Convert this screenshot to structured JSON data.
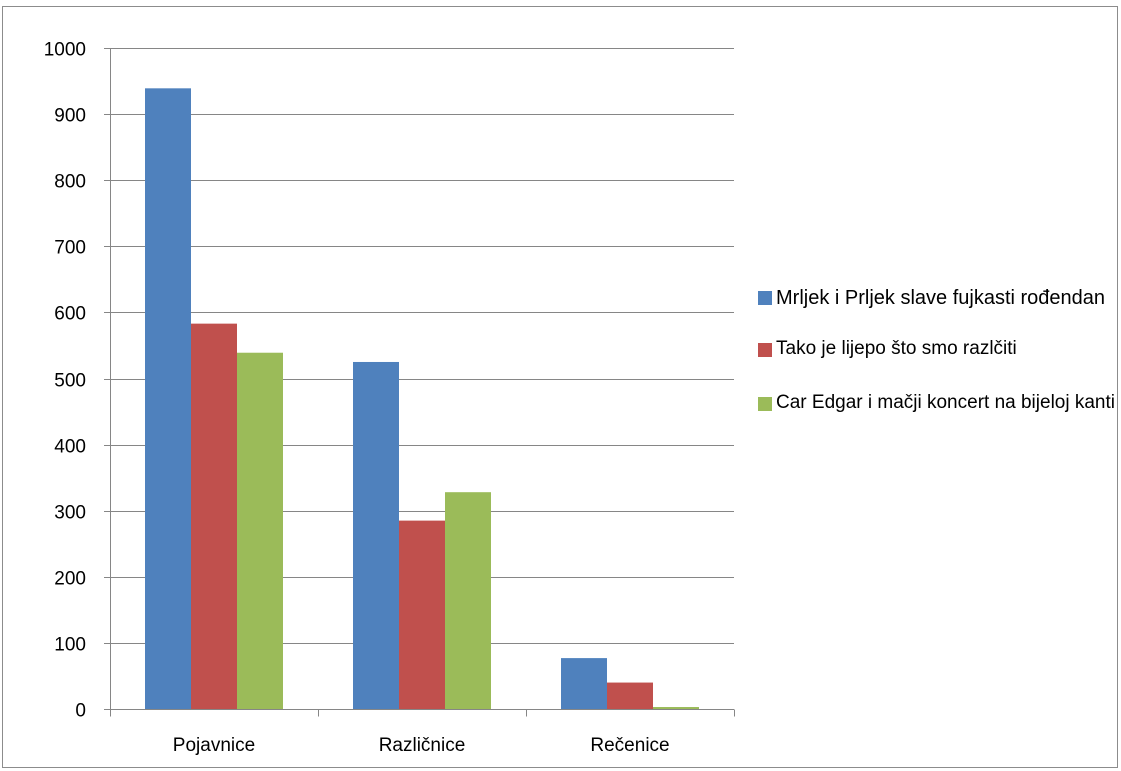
{
  "chart_data": {
    "type": "bar",
    "title": "",
    "xlabel": "",
    "ylabel": "",
    "categories": [
      "Pojavnice",
      "Različnice",
      "Rečenice"
    ],
    "series": [
      {
        "name": "Mrljek i Prljek slave fujkasti rođendan",
        "color": "#4f81bd",
        "values": [
          939,
          525,
          77
        ]
      },
      {
        "name": "Tako je lijepo što smo razlčiti",
        "color": "#c0504d",
        "values": [
          583,
          285,
          40
        ]
      },
      {
        "name": "Car Edgar i mačji koncert na bijeloj kanti",
        "color": "#9bbb59",
        "values": [
          539,
          328,
          3
        ]
      }
    ],
    "ylim": [
      0,
      1000
    ],
    "yticks": [
      0,
      100,
      200,
      300,
      400,
      500,
      600,
      700,
      800,
      900,
      1000
    ],
    "grid": true,
    "legend_position": "right"
  }
}
